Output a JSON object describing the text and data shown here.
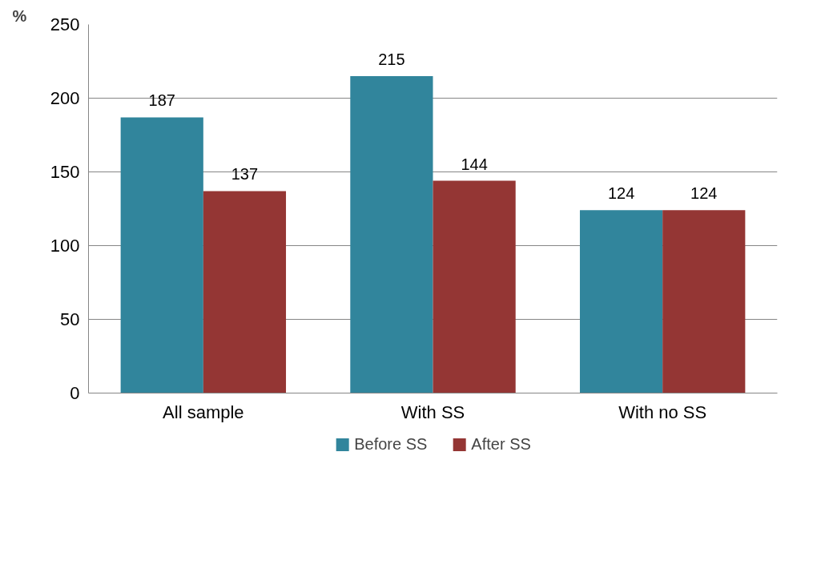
{
  "chart_data": {
    "type": "bar",
    "ylabel": "%",
    "categories": [
      "All sample",
      "With SS",
      "With no SS"
    ],
    "series": [
      {
        "name": "Before SS",
        "color": "#31859c",
        "values": [
          187,
          215,
          124
        ]
      },
      {
        "name": "After SS",
        "color": "#943634",
        "values": [
          137,
          144,
          124
        ]
      }
    ],
    "ylim": [
      0,
      250
    ],
    "yticks": [
      0,
      50,
      100,
      150,
      200,
      250
    ],
    "grid": "y",
    "legend": "bottom",
    "data_labels": true
  }
}
